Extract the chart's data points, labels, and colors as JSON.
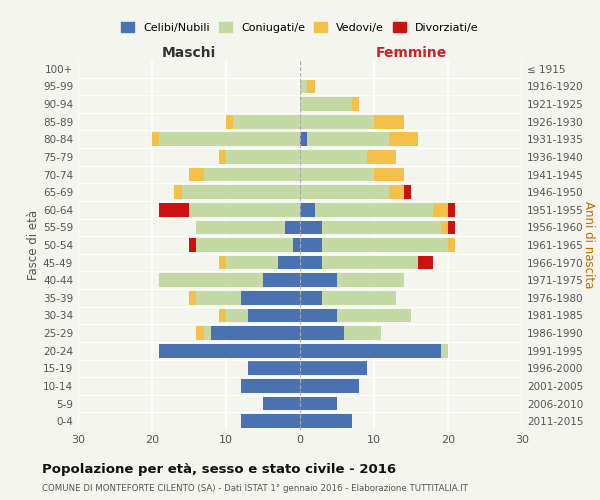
{
  "age_groups": [
    "0-4",
    "5-9",
    "10-14",
    "15-19",
    "20-24",
    "25-29",
    "30-34",
    "35-39",
    "40-44",
    "45-49",
    "50-54",
    "55-59",
    "60-64",
    "65-69",
    "70-74",
    "75-79",
    "80-84",
    "85-89",
    "90-94",
    "95-99",
    "100+"
  ],
  "birth_years": [
    "2011-2015",
    "2006-2010",
    "2001-2005",
    "1996-2000",
    "1991-1995",
    "1986-1990",
    "1981-1985",
    "1976-1980",
    "1971-1975",
    "1966-1970",
    "1961-1965",
    "1956-1960",
    "1951-1955",
    "1946-1950",
    "1941-1945",
    "1936-1940",
    "1931-1935",
    "1926-1930",
    "1921-1925",
    "1916-1920",
    "≤ 1915"
  ],
  "colors": {
    "celibi": "#4a72b0",
    "coniugati": "#c5d9a4",
    "vedovi": "#f5c04a",
    "divorziati": "#cc1111"
  },
  "males": {
    "celibi": [
      8,
      5,
      8,
      7,
      19,
      12,
      7,
      8,
      5,
      3,
      1,
      2,
      0,
      0,
      0,
      0,
      0,
      0,
      0,
      0,
      0
    ],
    "coniugati": [
      0,
      0,
      0,
      0,
      0,
      1,
      3,
      6,
      14,
      7,
      13,
      12,
      15,
      16,
      13,
      10,
      19,
      9,
      0,
      0,
      0
    ],
    "vedovi": [
      0,
      0,
      0,
      0,
      0,
      1,
      1,
      1,
      0,
      1,
      0,
      0,
      0,
      1,
      2,
      1,
      1,
      1,
      0,
      0,
      0
    ],
    "divorziati": [
      0,
      0,
      0,
      0,
      0,
      0,
      0,
      0,
      0,
      0,
      1,
      0,
      4,
      0,
      0,
      0,
      0,
      0,
      0,
      0,
      0
    ]
  },
  "females": {
    "celibi": [
      7,
      5,
      8,
      9,
      19,
      6,
      5,
      3,
      5,
      3,
      3,
      3,
      2,
      0,
      0,
      0,
      1,
      0,
      0,
      0,
      0
    ],
    "coniugati": [
      0,
      0,
      0,
      0,
      1,
      5,
      10,
      10,
      9,
      13,
      17,
      16,
      16,
      12,
      10,
      9,
      11,
      10,
      7,
      1,
      0
    ],
    "vedovi": [
      0,
      0,
      0,
      0,
      0,
      0,
      0,
      0,
      0,
      0,
      1,
      1,
      2,
      2,
      4,
      4,
      4,
      4,
      1,
      1,
      0
    ],
    "divorziati": [
      0,
      0,
      0,
      0,
      0,
      0,
      0,
      0,
      0,
      2,
      0,
      1,
      1,
      1,
      0,
      0,
      0,
      0,
      0,
      0,
      0
    ]
  },
  "xlim": 30,
  "title": "Popolazione per età, sesso e stato civile - 2016",
  "subtitle": "COMUNE DI MONTEFORTE CILENTO (SA) - Dati ISTAT 1° gennaio 2016 - Elaborazione TUTTITALIA.IT",
  "ylabel_left": "Fasce di età",
  "ylabel_right": "Anni di nascita",
  "xlabel_left": "Maschi",
  "xlabel_right": "Femmine",
  "legend_labels": [
    "Celibi/Nubili",
    "Coniugati/e",
    "Vedovi/e",
    "Divorziati/e"
  ],
  "background_color": "#f5f5f0"
}
